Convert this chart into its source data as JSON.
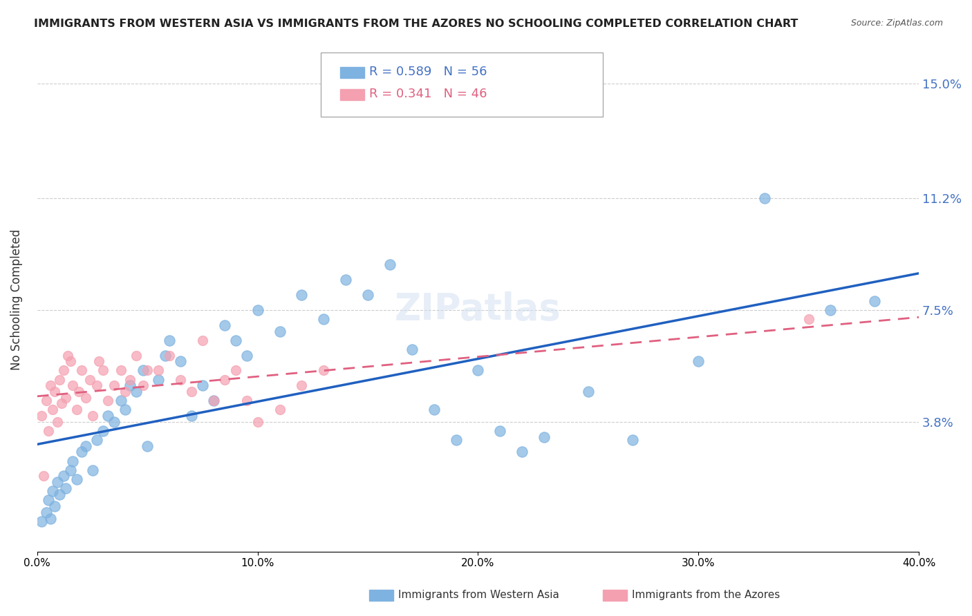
{
  "title": "IMMIGRANTS FROM WESTERN ASIA VS IMMIGRANTS FROM THE AZORES NO SCHOOLING COMPLETED CORRELATION CHART",
  "source": "Source: ZipAtlas.com",
  "ylabel": "No Schooling Completed",
  "yticks": [
    "15.0%",
    "11.2%",
    "7.5%",
    "3.8%"
  ],
  "ytick_vals": [
    0.15,
    0.112,
    0.075,
    0.038
  ],
  "xlim": [
    0.0,
    0.4
  ],
  "ylim": [
    -0.005,
    0.162
  ],
  "legend1_R": "0.589",
  "legend1_N": "56",
  "legend2_R": "0.341",
  "legend2_N": "46",
  "legend1_label": "Immigrants from Western Asia",
  "legend2_label": "Immigrants from the Azores",
  "blue_color": "#7EB2E0",
  "pink_color": "#F4A0B0",
  "blue_line_color": "#2060C0",
  "pink_line_color": "#E06080",
  "background_color": "#ffffff",
  "blue_x": [
    0.002,
    0.004,
    0.005,
    0.006,
    0.007,
    0.008,
    0.009,
    0.01,
    0.012,
    0.013,
    0.015,
    0.016,
    0.018,
    0.02,
    0.022,
    0.025,
    0.027,
    0.03,
    0.032,
    0.035,
    0.038,
    0.04,
    0.042,
    0.045,
    0.048,
    0.05,
    0.055,
    0.058,
    0.06,
    0.065,
    0.07,
    0.075,
    0.08,
    0.085,
    0.09,
    0.095,
    0.1,
    0.11,
    0.12,
    0.13,
    0.14,
    0.15,
    0.16,
    0.17,
    0.18,
    0.19,
    0.2,
    0.21,
    0.22,
    0.23,
    0.25,
    0.27,
    0.3,
    0.33,
    0.36,
    0.38
  ],
  "blue_y": [
    0.005,
    0.008,
    0.012,
    0.006,
    0.015,
    0.01,
    0.018,
    0.014,
    0.02,
    0.016,
    0.022,
    0.025,
    0.019,
    0.028,
    0.03,
    0.022,
    0.032,
    0.035,
    0.04,
    0.038,
    0.045,
    0.042,
    0.05,
    0.048,
    0.055,
    0.03,
    0.052,
    0.06,
    0.065,
    0.058,
    0.04,
    0.05,
    0.045,
    0.07,
    0.065,
    0.06,
    0.075,
    0.068,
    0.08,
    0.072,
    0.085,
    0.08,
    0.09,
    0.062,
    0.042,
    0.032,
    0.055,
    0.035,
    0.028,
    0.033,
    0.048,
    0.032,
    0.058,
    0.112,
    0.075,
    0.078
  ],
  "pink_x": [
    0.002,
    0.003,
    0.004,
    0.005,
    0.006,
    0.007,
    0.008,
    0.009,
    0.01,
    0.011,
    0.012,
    0.013,
    0.014,
    0.015,
    0.016,
    0.018,
    0.019,
    0.02,
    0.022,
    0.024,
    0.025,
    0.027,
    0.028,
    0.03,
    0.032,
    0.035,
    0.038,
    0.04,
    0.042,
    0.045,
    0.048,
    0.05,
    0.055,
    0.06,
    0.065,
    0.07,
    0.075,
    0.08,
    0.085,
    0.09,
    0.095,
    0.1,
    0.11,
    0.12,
    0.13,
    0.35
  ],
  "pink_y": [
    0.04,
    0.02,
    0.045,
    0.035,
    0.05,
    0.042,
    0.048,
    0.038,
    0.052,
    0.044,
    0.055,
    0.046,
    0.06,
    0.058,
    0.05,
    0.042,
    0.048,
    0.055,
    0.046,
    0.052,
    0.04,
    0.05,
    0.058,
    0.055,
    0.045,
    0.05,
    0.055,
    0.048,
    0.052,
    0.06,
    0.05,
    0.055,
    0.055,
    0.06,
    0.052,
    0.048,
    0.065,
    0.045,
    0.052,
    0.055,
    0.045,
    0.038,
    0.042,
    0.05,
    0.055,
    0.072
  ]
}
